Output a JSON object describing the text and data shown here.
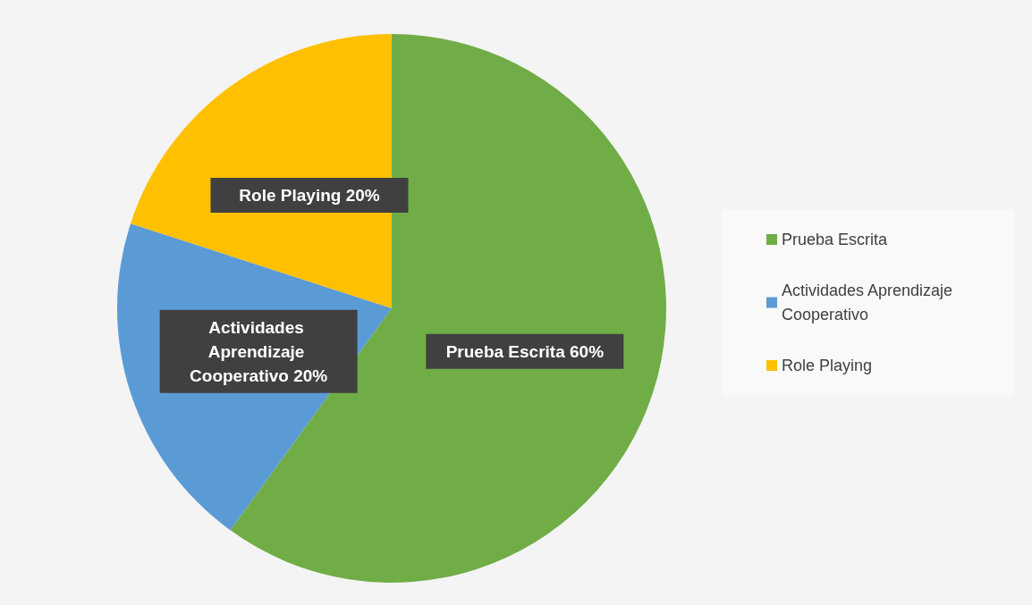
{
  "chart_data": {
    "type": "pie",
    "categories": [
      "Prueba Escrita",
      "Actividades Aprendizaje Cooperativo",
      "Role Playing"
    ],
    "values": [
      60,
      20,
      20
    ],
    "colors": [
      "#70ad47",
      "#5b9bd5",
      "#ffc000"
    ],
    "value_labels": [
      "Prueba Escrita 60%",
      "Actividades Aprendizaje Cooperativo 20%",
      "Role Playing 20%"
    ],
    "legend": "right"
  }
}
